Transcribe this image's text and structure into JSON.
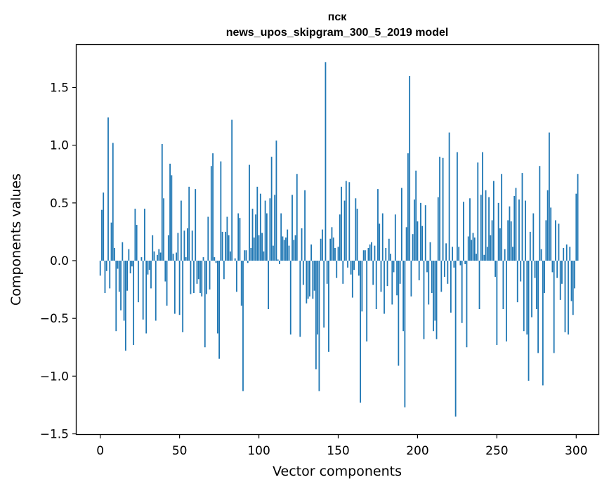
{
  "chart_data": {
    "type": "bar",
    "title": "пск",
    "subtitle": "news_upos_skipgram_300_5_2019 model",
    "xlabel": "Vector components",
    "ylabel": "Components values",
    "xlim": [
      -15,
      315
    ],
    "ylim": [
      -1.5,
      1.8
    ],
    "xticks": [
      0,
      50,
      100,
      150,
      200,
      250,
      300
    ],
    "yticks": [
      -1.5,
      -1.0,
      -0.5,
      0.0,
      0.5,
      1.0,
      1.5
    ],
    "ytick_labels": [
      "−1.5",
      "−1.0",
      "−0.5",
      "0.0",
      "0.5",
      "1.0",
      "1.5"
    ],
    "bar_color": "#1f77b4",
    "values": [
      -0.13,
      0.44,
      0.59,
      -0.28,
      -0.09,
      1.24,
      -0.24,
      0.33,
      1.02,
      0.11,
      -0.61,
      -0.07,
      -0.27,
      -0.43,
      0.16,
      -0.52,
      -0.78,
      -0.26,
      0.1,
      -0.11,
      -0.05,
      -0.73,
      0.45,
      0.31,
      -0.36,
      0.0,
      0.03,
      -0.51,
      0.45,
      -0.63,
      -0.12,
      -0.08,
      -0.24,
      0.22,
      0.08,
      -0.52,
      0.05,
      0.1,
      0.07,
      1.01,
      0.54,
      -0.18,
      -0.39,
      0.22,
      0.84,
      0.74,
      0.06,
      -0.46,
      0.07,
      0.24,
      -0.47,
      0.52,
      -0.62,
      0.26,
      0.03,
      0.28,
      0.64,
      -0.29,
      0.26,
      -0.28,
      0.62,
      -0.2,
      -0.16,
      -0.28,
      -0.31,
      0.03,
      -0.75,
      -0.29,
      0.38,
      -0.25,
      0.82,
      0.93,
      0.03,
      -0.02,
      -0.63,
      -0.85,
      0.86,
      0.25,
      -0.16,
      0.25,
      0.38,
      0.22,
      0.08,
      1.22,
      0.0,
      0.02,
      -0.27,
      0.41,
      0.37,
      -0.39,
      -1.13,
      0.09,
      0.09,
      -0.02,
      0.83,
      0.11,
      0.45,
      0.2,
      0.4,
      0.64,
      0.22,
      0.58,
      0.24,
      0.08,
      0.52,
      0.41,
      -0.42,
      0.54,
      0.9,
      0.13,
      0.57,
      1.04,
      0.01,
      -0.03,
      0.41,
      0.21,
      0.18,
      0.2,
      0.27,
      0.13,
      -0.64,
      0.57,
      0.18,
      0.22,
      0.75,
      0.0,
      -0.66,
      0.28,
      -0.21,
      0.61,
      -0.37,
      -0.33,
      -0.31,
      0.14,
      -0.33,
      -0.26,
      -0.94,
      -0.64,
      -1.13,
      0.19,
      0.27,
      -0.58,
      1.72,
      -0.2,
      -0.79,
      0.19,
      0.29,
      0.2,
      0.11,
      -0.15,
      0.12,
      0.4,
      0.64,
      -0.2,
      0.52,
      0.69,
      -0.06,
      0.68,
      -0.12,
      -0.32,
      -0.08,
      0.54,
      0.45,
      -0.13,
      -1.23,
      -0.44,
      0.09,
      0.09,
      -0.7,
      0.11,
      0.14,
      0.16,
      -0.21,
      0.13,
      -0.42,
      0.62,
      0.32,
      -0.27,
      0.41,
      -0.46,
      0.11,
      -0.22,
      0.19,
      0.06,
      -0.38,
      -0.1,
      0.4,
      -0.3,
      -0.91,
      -0.2,
      0.63,
      -0.61,
      -1.27,
      0.29,
      0.93,
      1.6,
      -0.31,
      0.23,
      0.53,
      0.78,
      0.34,
      -0.17,
      0.5,
      0.3,
      -0.68,
      0.48,
      -0.1,
      -0.38,
      0.16,
      -0.28,
      -0.61,
      -0.52,
      -0.68,
      0.55,
      0.9,
      -0.27,
      0.89,
      -0.14,
      0.15,
      -0.2,
      1.11,
      -0.45,
      0.12,
      -0.06,
      -1.35,
      0.94,
      0.12,
      -0.04,
      -0.54,
      0.51,
      -0.03,
      -0.75,
      0.21,
      0.54,
      0.18,
      0.24,
      0.2,
      0.06,
      0.85,
      -0.42,
      0.57,
      0.94,
      0.05,
      0.61,
      0.12,
      0.55,
      0.22,
      0.35,
      0.69,
      -0.14,
      -0.73,
      0.5,
      0.28,
      0.75,
      -0.42,
      0.1,
      -0.7,
      0.35,
      0.47,
      0.34,
      0.12,
      0.56,
      0.63,
      -0.36,
      0.53,
      -0.18,
      0.76,
      -0.61,
      0.52,
      -0.64,
      -1.04,
      0.25,
      -0.49,
      0.41,
      -0.15,
      -0.42,
      -0.8,
      0.82,
      0.1,
      -1.08,
      -0.28,
      0.35,
      0.61,
      1.11,
      0.46,
      -0.1,
      -0.8,
      0.35,
      -0.15,
      0.32,
      -0.34,
      -0.2,
      0.11,
      -0.62,
      0.14,
      -0.64,
      0.12,
      -0.35,
      -0.47,
      -0.24,
      0.58,
      0.75
    ]
  }
}
